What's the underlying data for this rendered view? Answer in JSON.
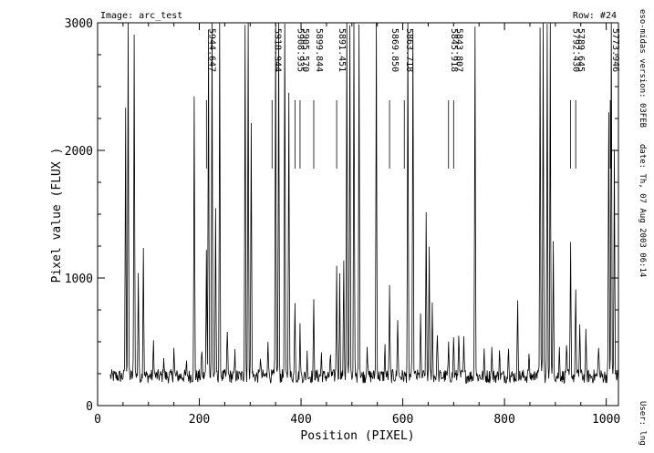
{
  "header": {
    "image_text": "Image: arc_test",
    "row_text": "Row: #24"
  },
  "side_text": {
    "version": "eso-midas version: 03FEB",
    "date": "date: Th, 07 Aug 2003 06:14",
    "user": "User: lng"
  },
  "chart_data": {
    "type": "line",
    "xlabel": "Position (PIXEL)",
    "ylabel": "Pixel value (FLUX )",
    "xlim": [
      0,
      1024
    ],
    "ylim": [
      0,
      3000
    ],
    "x_ticks": [
      0,
      200,
      400,
      600,
      800,
      1000
    ],
    "y_ticks": [
      0,
      1000,
      2000,
      3000
    ],
    "x_tick_labels": [
      "0",
      "200",
      "400",
      "600",
      "800",
      "1000"
    ],
    "y_tick_labels": [
      "0",
      "1000",
      "2000",
      "3000"
    ],
    "grid": false,
    "series": [
      {
        "x_range": [
          25,
          1024
        ],
        "baseline": 230,
        "peaks": [
          {
            "x": 55,
            "y": 2300
          },
          {
            "x": 60,
            "y": 3000
          },
          {
            "x": 72,
            "y": 2950
          },
          {
            "x": 80,
            "y": 1050
          },
          {
            "x": 90,
            "y": 1260
          },
          {
            "x": 110,
            "y": 500
          },
          {
            "x": 130,
            "y": 400
          },
          {
            "x": 150,
            "y": 450
          },
          {
            "x": 175,
            "y": 320
          },
          {
            "x": 190,
            "y": 2400
          },
          {
            "x": 205,
            "y": 450
          },
          {
            "x": 214,
            "y": 1200
          },
          {
            "x": 218,
            "y": 3000
          },
          {
            "x": 225,
            "y": 3000
          },
          {
            "x": 232,
            "y": 1500
          },
          {
            "x": 240,
            "y": 3000
          },
          {
            "x": 255,
            "y": 600
          },
          {
            "x": 270,
            "y": 400
          },
          {
            "x": 290,
            "y": 3000
          },
          {
            "x": 296,
            "y": 3000
          },
          {
            "x": 302,
            "y": 2200
          },
          {
            "x": 320,
            "y": 400
          },
          {
            "x": 335,
            "y": 550
          },
          {
            "x": 350,
            "y": 3000
          },
          {
            "x": 356,
            "y": 3000
          },
          {
            "x": 368,
            "y": 3000
          },
          {
            "x": 376,
            "y": 2500
          },
          {
            "x": 388,
            "y": 850
          },
          {
            "x": 398,
            "y": 600
          },
          {
            "x": 412,
            "y": 400
          },
          {
            "x": 425,
            "y": 800
          },
          {
            "x": 440,
            "y": 400
          },
          {
            "x": 458,
            "y": 400
          },
          {
            "x": 470,
            "y": 1100
          },
          {
            "x": 476,
            "y": 1000
          },
          {
            "x": 484,
            "y": 1150
          },
          {
            "x": 490,
            "y": 3000
          },
          {
            "x": 496,
            "y": 3000
          },
          {
            "x": 504,
            "y": 3000
          },
          {
            "x": 514,
            "y": 3000
          },
          {
            "x": 530,
            "y": 500
          },
          {
            "x": 548,
            "y": 3000
          },
          {
            "x": 565,
            "y": 450
          },
          {
            "x": 574,
            "y": 900
          },
          {
            "x": 590,
            "y": 700
          },
          {
            "x": 610,
            "y": 3000
          },
          {
            "x": 620,
            "y": 3000
          },
          {
            "x": 635,
            "y": 700
          },
          {
            "x": 646,
            "y": 1500
          },
          {
            "x": 652,
            "y": 1200
          },
          {
            "x": 658,
            "y": 800
          },
          {
            "x": 668,
            "y": 600
          },
          {
            "x": 690,
            "y": 450
          },
          {
            "x": 700,
            "y": 550
          },
          {
            "x": 710,
            "y": 600
          },
          {
            "x": 720,
            "y": 500
          },
          {
            "x": 742,
            "y": 3000
          },
          {
            "x": 760,
            "y": 400
          },
          {
            "x": 775,
            "y": 450
          },
          {
            "x": 790,
            "y": 450
          },
          {
            "x": 808,
            "y": 500
          },
          {
            "x": 826,
            "y": 850
          },
          {
            "x": 848,
            "y": 400
          },
          {
            "x": 862,
            "y": 300
          },
          {
            "x": 870,
            "y": 3000
          },
          {
            "x": 876,
            "y": 3000
          },
          {
            "x": 884,
            "y": 3000
          },
          {
            "x": 890,
            "y": 3000
          },
          {
            "x": 896,
            "y": 1300
          },
          {
            "x": 908,
            "y": 450
          },
          {
            "x": 922,
            "y": 500
          },
          {
            "x": 930,
            "y": 1250
          },
          {
            "x": 940,
            "y": 950
          },
          {
            "x": 948,
            "y": 650
          },
          {
            "x": 960,
            "y": 550
          },
          {
            "x": 985,
            "y": 500
          },
          {
            "x": 1005,
            "y": 2300
          },
          {
            "x": 1010,
            "y": 3000
          },
          {
            "x": 1016,
            "y": 2000
          }
        ]
      }
    ],
    "annotations": [
      {
        "label": "5944.647",
        "x": 214
      },
      {
        "label": "5918.944",
        "x": 343
      },
      {
        "label": "5908.935",
        "x": 388
      },
      {
        "label": "5905.570",
        "x": 398
      },
      {
        "label": "5899.844",
        "x": 425
      },
      {
        "label": "5891.451",
        "x": 470
      },
      {
        "label": "5869.850",
        "x": 574
      },
      {
        "label": "5863.718",
        "x": 603
      },
      {
        "label": "5845.918",
        "x": 690
      },
      {
        "label": "5843.807",
        "x": 700
      },
      {
        "label": "5792.430",
        "x": 930
      },
      {
        "label": "5789.645",
        "x": 940
      },
      {
        "label": "5773.946",
        "x": 1008
      }
    ]
  }
}
